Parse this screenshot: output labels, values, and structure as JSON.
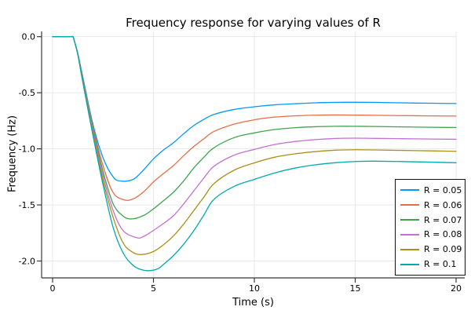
{
  "title": "Frequency response for varying values of R",
  "style": {
    "background": "#ffffff",
    "grid_color": "#e7e7e7",
    "axis_color": "#383838",
    "text_color": "#000000",
    "legend_border_color": "#111111"
  },
  "chart_data": {
    "type": "line",
    "title": "Frequency response for varying values of R",
    "xlabel": "Time (s)",
    "ylabel": "Frequency (Hz)",
    "xlim": [
      0,
      20
    ],
    "ylim": [
      -2.15,
      0.05
    ],
    "grid": true,
    "legend_position": "bottom-right",
    "xticks": [
      0,
      5,
      10,
      15,
      20
    ],
    "xtick_labels": [
      "0",
      "5",
      "10",
      "15",
      "20"
    ],
    "yticks": [
      0.0,
      -0.5,
      -1.0,
      -1.5,
      -2.0
    ],
    "ytick_labels": [
      "0.0",
      "-0.5",
      "-1.0",
      "-1.5",
      "-2.0"
    ],
    "series": [
      {
        "name": "R = 0.05",
        "color": "#009AFA",
        "points": [
          [
            0,
            0
          ],
          [
            0.5,
            0
          ],
          [
            0.9,
            0
          ],
          [
            1,
            0
          ],
          [
            1.05,
            -0.02
          ],
          [
            1.25,
            -0.15
          ],
          [
            1.5,
            -0.36
          ],
          [
            2,
            -0.78
          ],
          [
            2.5,
            -1.08
          ],
          [
            3,
            -1.25
          ],
          [
            3.4,
            -1.288
          ],
          [
            4,
            -1.272
          ],
          [
            4.5,
            -1.19
          ],
          [
            5,
            -1.09
          ],
          [
            5.5,
            -1.01
          ],
          [
            6,
            -0.944
          ],
          [
            6.5,
            -0.865
          ],
          [
            7,
            -0.792
          ],
          [
            7.5,
            -0.737
          ],
          [
            8,
            -0.693
          ],
          [
            9,
            -0.649
          ],
          [
            10,
            -0.625
          ],
          [
            11,
            -0.608
          ],
          [
            12,
            -0.598
          ],
          [
            13,
            -0.59
          ],
          [
            14,
            -0.586
          ],
          [
            15,
            -0.585
          ],
          [
            16,
            -0.586
          ],
          [
            18,
            -0.592
          ],
          [
            20,
            -0.596
          ]
        ]
      },
      {
        "name": "R = 0.06",
        "color": "#E36F47",
        "points": [
          [
            0,
            0
          ],
          [
            0.5,
            0
          ],
          [
            0.9,
            0
          ],
          [
            1,
            0
          ],
          [
            1.05,
            -0.02
          ],
          [
            1.25,
            -0.15
          ],
          [
            1.5,
            -0.37
          ],
          [
            2,
            -0.8
          ],
          [
            2.5,
            -1.15
          ],
          [
            3,
            -1.39
          ],
          [
            3.55,
            -1.455
          ],
          [
            4,
            -1.446
          ],
          [
            4.5,
            -1.385
          ],
          [
            5,
            -1.295
          ],
          [
            5.5,
            -1.22
          ],
          [
            6,
            -1.148
          ],
          [
            6.5,
            -1.06
          ],
          [
            7,
            -0.979
          ],
          [
            7.5,
            -0.91
          ],
          [
            8,
            -0.845
          ],
          [
            9,
            -0.78
          ],
          [
            10,
            -0.741
          ],
          [
            11,
            -0.717
          ],
          [
            12,
            -0.706
          ],
          [
            13,
            -0.7
          ],
          [
            14,
            -0.698
          ],
          [
            15,
            -0.699
          ],
          [
            16,
            -0.701
          ],
          [
            18,
            -0.705
          ],
          [
            20,
            -0.708
          ]
        ]
      },
      {
        "name": "R = 0.07",
        "color": "#3EA44E",
        "points": [
          [
            0,
            0
          ],
          [
            0.5,
            0
          ],
          [
            0.9,
            0
          ],
          [
            1,
            0
          ],
          [
            1.05,
            -0.02
          ],
          [
            1.25,
            -0.155
          ],
          [
            1.5,
            -0.38
          ],
          [
            2,
            -0.82
          ],
          [
            2.5,
            -1.2
          ],
          [
            3,
            -1.49
          ],
          [
            3.5,
            -1.6
          ],
          [
            3.92,
            -1.625
          ],
          [
            4.5,
            -1.595
          ],
          [
            5,
            -1.535
          ],
          [
            5.5,
            -1.462
          ],
          [
            6,
            -1.385
          ],
          [
            6.5,
            -1.285
          ],
          [
            7,
            -1.17
          ],
          [
            7.5,
            -1.075
          ],
          [
            8,
            -0.99
          ],
          [
            9,
            -0.9
          ],
          [
            10,
            -0.858
          ],
          [
            11,
            -0.828
          ],
          [
            12,
            -0.812
          ],
          [
            13,
            -0.803
          ],
          [
            14,
            -0.799
          ],
          [
            15,
            -0.799
          ],
          [
            16,
            -0.801
          ],
          [
            18,
            -0.806
          ],
          [
            20,
            -0.81
          ]
        ]
      },
      {
        "name": "R = 0.08",
        "color": "#C371D2",
        "points": [
          [
            0,
            0
          ],
          [
            0.5,
            0
          ],
          [
            0.9,
            0
          ],
          [
            1,
            0
          ],
          [
            1.05,
            -0.02
          ],
          [
            1.25,
            -0.155
          ],
          [
            1.5,
            -0.39
          ],
          [
            2,
            -0.84
          ],
          [
            2.5,
            -1.24
          ],
          [
            3,
            -1.55
          ],
          [
            3.5,
            -1.73
          ],
          [
            4.17,
            -1.792
          ],
          [
            4.5,
            -1.782
          ],
          [
            5,
            -1.727
          ],
          [
            5.5,
            -1.665
          ],
          [
            6,
            -1.595
          ],
          [
            6.5,
            -1.49
          ],
          [
            7,
            -1.375
          ],
          [
            7.5,
            -1.26
          ],
          [
            8,
            -1.155
          ],
          [
            9,
            -1.056
          ],
          [
            10,
            -1.005
          ],
          [
            11,
            -0.962
          ],
          [
            12,
            -0.935
          ],
          [
            13,
            -0.918
          ],
          [
            14,
            -0.908
          ],
          [
            15,
            -0.905
          ],
          [
            16,
            -0.907
          ],
          [
            18,
            -0.911
          ],
          [
            20,
            -0.915
          ]
        ]
      },
      {
        "name": "R = 0.09",
        "color": "#AC8E18",
        "points": [
          [
            0,
            0
          ],
          [
            0.5,
            0
          ],
          [
            0.9,
            0
          ],
          [
            1,
            0
          ],
          [
            1.05,
            -0.02
          ],
          [
            1.25,
            -0.16
          ],
          [
            1.5,
            -0.4
          ],
          [
            2,
            -0.86
          ],
          [
            2.5,
            -1.28
          ],
          [
            3,
            -1.61
          ],
          [
            3.5,
            -1.84
          ],
          [
            4,
            -1.925
          ],
          [
            4.44,
            -1.942
          ],
          [
            5,
            -1.915
          ],
          [
            5.5,
            -1.855
          ],
          [
            6,
            -1.775
          ],
          [
            6.5,
            -1.67
          ],
          [
            7,
            -1.55
          ],
          [
            7.5,
            -1.43
          ],
          [
            8,
            -1.31
          ],
          [
            9,
            -1.19
          ],
          [
            10,
            -1.125
          ],
          [
            11,
            -1.075
          ],
          [
            12,
            -1.045
          ],
          [
            13,
            -1.025
          ],
          [
            14,
            -1.012
          ],
          [
            15,
            -1.008
          ],
          [
            16,
            -1.01
          ],
          [
            18,
            -1.016
          ],
          [
            20,
            -1.022
          ]
        ]
      },
      {
        "name": "R = 0.1",
        "color": "#00AAAE",
        "points": [
          [
            0,
            0
          ],
          [
            0.5,
            0
          ],
          [
            0.9,
            0
          ],
          [
            1,
            0
          ],
          [
            1.05,
            -0.02
          ],
          [
            1.25,
            -0.16
          ],
          [
            1.5,
            -0.41
          ],
          [
            2,
            -0.88
          ],
          [
            2.5,
            -1.32
          ],
          [
            3,
            -1.7
          ],
          [
            3.5,
            -1.93
          ],
          [
            4,
            -2.04
          ],
          [
            4.4,
            -2.077
          ],
          [
            4.79,
            -2.086
          ],
          [
            5.2,
            -2.07
          ],
          [
            5.5,
            -2.03
          ],
          [
            6,
            -1.95
          ],
          [
            6.5,
            -1.85
          ],
          [
            7,
            -1.73
          ],
          [
            7.5,
            -1.59
          ],
          [
            8,
            -1.45
          ],
          [
            9,
            -1.335
          ],
          [
            10,
            -1.272
          ],
          [
            11,
            -1.215
          ],
          [
            12,
            -1.172
          ],
          [
            13,
            -1.143
          ],
          [
            14,
            -1.124
          ],
          [
            15,
            -1.113
          ],
          [
            16,
            -1.11
          ],
          [
            18,
            -1.116
          ],
          [
            20,
            -1.124
          ]
        ]
      }
    ]
  }
}
